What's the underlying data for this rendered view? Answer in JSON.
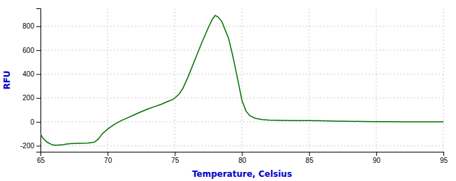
{
  "chart_data": {
    "type": "line",
    "xlabel": "Temperature, Celsius",
    "ylabel": "RFU",
    "color": "#007000",
    "xlim": [
      65,
      95
    ],
    "ylim": [
      -250,
      950
    ],
    "xticks": [
      65,
      70,
      75,
      80,
      85,
      90,
      95
    ],
    "yticks": [
      -200,
      0,
      200,
      400,
      600,
      800
    ],
    "grid": true,
    "x": [
      65.0,
      65.2,
      65.5,
      65.8,
      66.0,
      66.3,
      66.7,
      67.0,
      67.5,
      68.0,
      68.5,
      69.0,
      69.3,
      69.6,
      70.0,
      70.5,
      71.0,
      71.5,
      72.0,
      72.5,
      73.0,
      73.5,
      74.0,
      74.5,
      74.8,
      75.0,
      75.3,
      75.6,
      76.0,
      76.5,
      77.0,
      77.5,
      77.8,
      78.0,
      78.2,
      78.5,
      79.0,
      79.3,
      79.6,
      80.0,
      80.3,
      80.6,
      81.0,
      81.5,
      82.0,
      83.0,
      84.0,
      85.0,
      86.0,
      87.0,
      88.0,
      89.0,
      90.0,
      91.0,
      92.0,
      93.0,
      94.0,
      95.0
    ],
    "values": [
      -100,
      -140,
      -170,
      -188,
      -195,
      -195,
      -190,
      -185,
      -180,
      -178,
      -177,
      -170,
      -145,
      -100,
      -60,
      -20,
      10,
      35,
      60,
      85,
      108,
      128,
      148,
      172,
      185,
      200,
      230,
      280,
      380,
      520,
      660,
      790,
      860,
      890,
      880,
      840,
      700,
      560,
      400,
      180,
      90,
      50,
      30,
      20,
      15,
      12,
      10,
      10,
      9,
      7,
      5,
      3,
      2,
      2,
      1,
      1,
      0,
      0
    ]
  }
}
